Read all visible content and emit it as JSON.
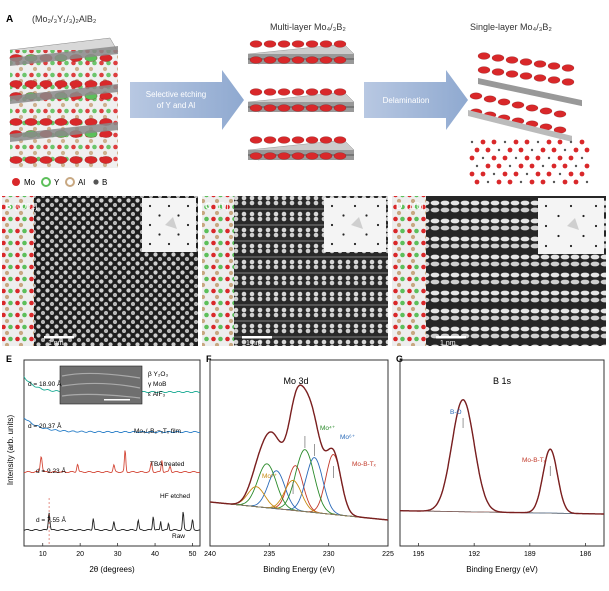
{
  "panelA": {
    "letter": "A",
    "title1": "(Mo₂/₃Y₁/₃)₂AlB₂",
    "title2": "Multi-layer Mo₄/₃B₂",
    "title3": "Single-layer Mo₄/₃B₂",
    "arrow1_line1": "Selective etching",
    "arrow1_line2": "of Y and Al",
    "arrow2": "Delamination",
    "legend": [
      "Mo",
      "Y",
      "Al",
      "B"
    ],
    "colors": {
      "mo": "#d9282a",
      "y": "#5cbf5a",
      "al": "#c8a882",
      "b": "#555555",
      "arrow": "#9db4d6"
    }
  },
  "panelB": {
    "letter": "B",
    "zone": "[0001]",
    "scale": "1 nm"
  },
  "panelC": {
    "letter": "C",
    "zone": "[1̅0]",
    "scale": "1 nm"
  },
  "panelD": {
    "letter": "D",
    "zone": "[11̅0]",
    "scale": "1 nm"
  },
  "panelE": {
    "letter": "E",
    "xlabel": "2θ (degrees)",
    "ylabel": "Intensity (arb. units)",
    "xticks": [
      "10",
      "20",
      "30",
      "40",
      "50"
    ],
    "d_labels": [
      "d = 18.90 Å",
      "d = 20.37 Å",
      "d = 9.23 Å",
      "d = 7.55 Å"
    ],
    "trace_labels": [
      "Mo₄/₃B₂−ₓTₓ film",
      "TBA treated",
      "HF etched",
      "Raw"
    ],
    "inset_legend": [
      "β  Y₂O₃",
      "γ  MoB",
      "ε  AlF₃"
    ],
    "peak_markers": [
      "(002)",
      "(004)",
      "(006)",
      "(008)"
    ]
  },
  "panelF": {
    "letter": "F",
    "title": "Mo 3d",
    "xlabel": "Binding Energy (eV)",
    "xticks": [
      "240",
      "235",
      "230",
      "225"
    ],
    "peaks": [
      "Mo⁴⁺",
      "Mo⁶⁺",
      "Mo⁵⁺",
      "Mo-B-Tₓ"
    ]
  },
  "panelG": {
    "letter": "G",
    "title": "B 1s",
    "xlabel": "Binding Energy (eV)",
    "xticks": [
      "195",
      "192",
      "189",
      "186"
    ],
    "peaks": [
      "B-O",
      "Mo-B-Tₓ"
    ]
  }
}
